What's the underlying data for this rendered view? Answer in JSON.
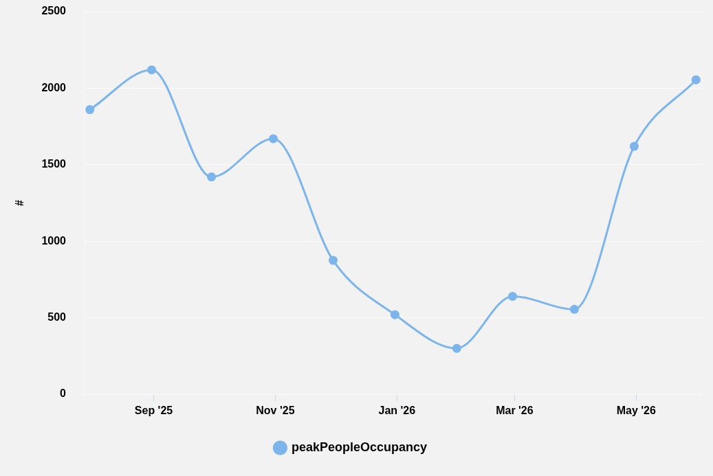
{
  "chart_data": {
    "type": "line",
    "ylabel": "#",
    "x": [
      "2025-07-31",
      "2025-08-31",
      "2025-09-30",
      "2025-10-31",
      "2025-11-30",
      "2025-12-31",
      "2026-01-31",
      "2026-02-28",
      "2026-03-31",
      "2026-04-30",
      "2026-05-31"
    ],
    "series": [
      {
        "name": "peakPeopleOccupancy",
        "color": "#7cb5ec",
        "values": [
          1860,
          2120,
          1420,
          1670,
          875,
          520,
          300,
          640,
          555,
          1620,
          2055
        ]
      }
    ],
    "xlim": [
      "2025-07-28",
      "2026-06-03"
    ],
    "xticks": [
      {
        "value": "2025-09-01",
        "label": "Sep '25"
      },
      {
        "value": "2025-11-01",
        "label": "Nov '25"
      },
      {
        "value": "2026-01-01",
        "label": "Jan '26"
      },
      {
        "value": "2026-03-01",
        "label": "Mar '26"
      },
      {
        "value": "2026-05-01",
        "label": "May '26"
      }
    ],
    "ylim": [
      0,
      2500
    ],
    "yticks": [
      0,
      500,
      1000,
      1500,
      2000,
      2500
    ],
    "grid": "y",
    "legend": "bottom",
    "marker": "circle"
  }
}
